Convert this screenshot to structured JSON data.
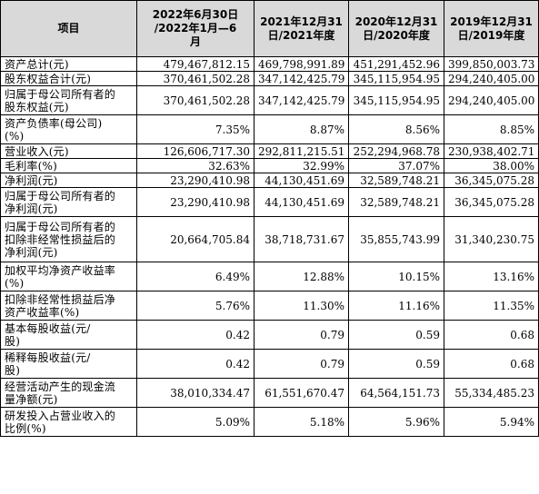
{
  "table": {
    "headers": [
      "项目",
      "2022年6月30日\n/2022年1月—6\n月",
      "2021年12月31\n日/2021年度",
      "2020年12月31\n日/2020年度",
      "2019年12月31\n日/2019年度"
    ],
    "rows": [
      {
        "label": "资产总计(元)",
        "values": [
          "479,467,812.15",
          "469,798,991.89",
          "451,291,452.96",
          "399,850,003.73"
        ]
      },
      {
        "label": "股东权益合计(元)",
        "values": [
          "370,461,502.28",
          "347,142,425.79",
          "345,115,954.95",
          "294,240,405.00"
        ]
      },
      {
        "label": "归属于母公司所有者的\n股东权益(元)",
        "values": [
          "370,461,502.28",
          "347,142,425.79",
          "345,115,954.95",
          "294,240,405.00"
        ]
      },
      {
        "label": "资产负债率(母公司)\n(%)",
        "values": [
          "7.35%",
          "8.87%",
          "8.56%",
          "8.85%"
        ]
      },
      {
        "label": "营业收入(元)",
        "values": [
          "126,606,717.30",
          "292,811,215.51",
          "252,294,968.78",
          "230,938,402.71"
        ]
      },
      {
        "label": "毛利率(%)",
        "values": [
          "32.63%",
          "32.99%",
          "37.07%",
          "38.00%"
        ]
      },
      {
        "label": "净利润(元)",
        "values": [
          "23,290,410.98",
          "44,130,451.69",
          "32,589,748.21",
          "36,345,075.28"
        ]
      },
      {
        "label": "归属于母公司所有者的\n净利润(元)",
        "values": [
          "23,290,410.98",
          "44,130,451.69",
          "32,589,748.21",
          "36,345,075.28"
        ]
      },
      {
        "label": "归属于母公司所有者的\n扣除非经常性损益后的\n净利润(元)",
        "values": [
          "20,664,705.84",
          "38,718,731.67",
          "35,855,743.99",
          "31,340,230.75"
        ]
      },
      {
        "label": "加权平均净资产收益率\n(%)",
        "values": [
          "6.49%",
          "12.88%",
          "10.15%",
          "13.16%"
        ]
      },
      {
        "label": "扣除非经常性损益后净\n资产收益率(%)",
        "values": [
          "5.76%",
          "11.30%",
          "11.16%",
          "11.35%"
        ]
      },
      {
        "label": "基本每股收益(元/\n股)",
        "values": [
          "0.42",
          "0.79",
          "0.59",
          "0.68"
        ]
      },
      {
        "label": "稀释每股收益(元/\n股)",
        "values": [
          "0.42",
          "0.79",
          "0.59",
          "0.68"
        ]
      },
      {
        "label": "经营活动产生的现金流\n量净额(元)",
        "values": [
          "38,010,334.47",
          "61,551,670.47",
          "64,564,151.73",
          "55,334,485.23"
        ]
      },
      {
        "label": "研发投入占营业收入的\n比例(%)",
        "values": [
          "5.09%",
          "5.18%",
          "5.96%",
          "5.94%"
        ]
      }
    ]
  }
}
